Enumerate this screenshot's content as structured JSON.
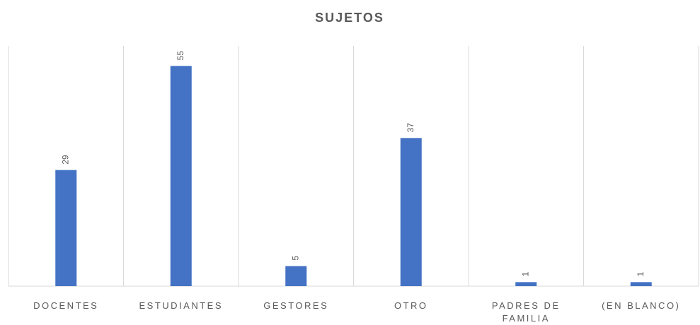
{
  "chart_data": {
    "type": "bar",
    "title": "SUJETOS",
    "categories": [
      "DOCENTES",
      "ESTUDIANTES",
      "GESTORES",
      "OTRO",
      "PADRES DE FAMILIA",
      "(EN BLANCO)"
    ],
    "values": [
      29,
      55,
      5,
      37,
      1,
      1
    ],
    "color": "#4472c4",
    "ylim": [
      0,
      60
    ]
  }
}
